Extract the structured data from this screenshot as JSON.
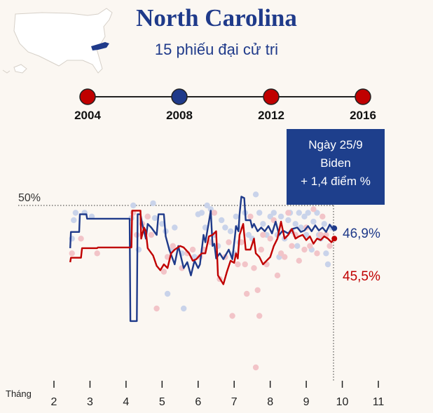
{
  "header": {
    "title": "North Carolina",
    "subtitle": "15 phiếu đại cử tri"
  },
  "timeline": {
    "years": [
      {
        "label": "2004",
        "winner": "rep"
      },
      {
        "label": "2008",
        "winner": "dem"
      },
      {
        "label": "2012",
        "winner": "rep"
      },
      {
        "label": "2016",
        "winner": "rep"
      }
    ]
  },
  "callout": {
    "date": "Ngày 25/9",
    "candidate": "Biden",
    "margin": "+ 1,4 điểm %"
  },
  "colors": {
    "dem": "#1f3a8a",
    "rep": "#c00000",
    "dem_dot": "#c9d3ea",
    "rep_dot": "#f2c4c8"
  },
  "chart_data": {
    "type": "line",
    "xlabel": "Tháng",
    "x_ticks": [
      "2",
      "3",
      "4",
      "5",
      "6",
      "7",
      "8",
      "9",
      "10",
      "11"
    ],
    "xlim": [
      2,
      11
    ],
    "ylim": [
      26,
      52
    ],
    "reference_line": {
      "value": 50,
      "label": "50%"
    },
    "end_labels": {
      "dem": "46,9%",
      "rep": "45,5%"
    },
    "series": [
      {
        "key": "dem",
        "points": [
          [
            2.45,
            44.2
          ],
          [
            2.47,
            46.4
          ],
          [
            2.7,
            46.4
          ],
          [
            2.72,
            48.8
          ],
          [
            2.9,
            48.8
          ],
          [
            2.92,
            48.2
          ],
          [
            4.1,
            48.2
          ],
          [
            4.12,
            34.3
          ],
          [
            4.3,
            34.3
          ],
          [
            4.32,
            48.8
          ],
          [
            4.4,
            48.8
          ],
          [
            4.45,
            47.5
          ],
          [
            4.55,
            45.5
          ],
          [
            4.6,
            47.5
          ],
          [
            4.7,
            47.0
          ],
          [
            4.85,
            46.0
          ],
          [
            4.9,
            48.8
          ],
          [
            5.05,
            48.8
          ],
          [
            5.1,
            45.8
          ],
          [
            5.2,
            44.0
          ],
          [
            5.35,
            42.0
          ],
          [
            5.45,
            44.5
          ],
          [
            5.6,
            41.5
          ],
          [
            5.7,
            42.3
          ],
          [
            5.8,
            40.5
          ],
          [
            5.9,
            42.5
          ],
          [
            6.0,
            41.5
          ],
          [
            6.05,
            42.0
          ],
          [
            6.15,
            46.0
          ],
          [
            6.2,
            45.0
          ],
          [
            6.3,
            47.8
          ],
          [
            6.35,
            49.3
          ],
          [
            6.4,
            44.5
          ],
          [
            6.45,
            44.8
          ],
          [
            6.5,
            42.8
          ],
          [
            6.6,
            43.5
          ],
          [
            6.7,
            42.7
          ],
          [
            6.85,
            44.0
          ],
          [
            6.95,
            42.7
          ],
          [
            7.02,
            45.8
          ],
          [
            7.05,
            47.2
          ],
          [
            7.12,
            46.5
          ],
          [
            7.15,
            48.8
          ],
          [
            7.2,
            51.2
          ],
          [
            7.28,
            51.0
          ],
          [
            7.32,
            48.0
          ],
          [
            7.45,
            48.0
          ],
          [
            7.5,
            47.0
          ],
          [
            7.55,
            47.5
          ],
          [
            7.65,
            46.5
          ],
          [
            7.75,
            47.0
          ],
          [
            7.85,
            46.5
          ],
          [
            7.95,
            47.2
          ],
          [
            8.05,
            46.2
          ],
          [
            8.15,
            47.8
          ],
          [
            8.25,
            46.0
          ],
          [
            8.35,
            46.6
          ],
          [
            8.5,
            46.2
          ],
          [
            8.6,
            46.8
          ],
          [
            8.75,
            47.0
          ],
          [
            8.85,
            46.4
          ],
          [
            8.95,
            46.6
          ],
          [
            9.05,
            47.2
          ],
          [
            9.15,
            46.5
          ],
          [
            9.25,
            47.3
          ],
          [
            9.35,
            46.6
          ],
          [
            9.45,
            47.0
          ],
          [
            9.55,
            46.4
          ],
          [
            9.65,
            47.4
          ],
          [
            9.72,
            46.9
          ],
          [
            9.78,
            46.9
          ]
        ]
      },
      {
        "key": "rep",
        "points": [
          [
            2.45,
            42.3
          ],
          [
            2.47,
            42.9
          ],
          [
            2.75,
            42.9
          ],
          [
            2.78,
            44.2
          ],
          [
            3.2,
            44.2
          ],
          [
            3.22,
            44.3
          ],
          [
            4.15,
            44.3
          ],
          [
            4.17,
            49.3
          ],
          [
            4.4,
            49.3
          ],
          [
            4.42,
            45.5
          ],
          [
            4.5,
            47.0
          ],
          [
            4.55,
            46.5
          ],
          [
            4.6,
            44.2
          ],
          [
            4.75,
            43.2
          ],
          [
            4.85,
            41.8
          ],
          [
            4.95,
            41.2
          ],
          [
            5.05,
            42.0
          ],
          [
            5.15,
            41.5
          ],
          [
            5.25,
            43.5
          ],
          [
            5.35,
            44.0
          ],
          [
            5.5,
            44.5
          ],
          [
            5.6,
            44.3
          ],
          [
            5.75,
            43.5
          ],
          [
            5.85,
            42.5
          ],
          [
            5.95,
            42.7
          ],
          [
            6.1,
            43.5
          ],
          [
            6.2,
            43.5
          ],
          [
            6.3,
            45.8
          ],
          [
            6.4,
            46.0
          ],
          [
            6.5,
            46.5
          ],
          [
            6.55,
            40.5
          ],
          [
            6.7,
            39.3
          ],
          [
            6.8,
            41.0
          ],
          [
            6.9,
            42.5
          ],
          [
            7.0,
            42.2
          ],
          [
            7.05,
            43.5
          ],
          [
            7.1,
            42.8
          ],
          [
            7.15,
            46.0
          ],
          [
            7.25,
            47.5
          ],
          [
            7.32,
            44.0
          ],
          [
            7.45,
            44.0
          ],
          [
            7.55,
            45.5
          ],
          [
            7.6,
            43.5
          ],
          [
            7.7,
            43.0
          ],
          [
            7.8,
            42.0
          ],
          [
            7.9,
            42.5
          ],
          [
            8.0,
            43.0
          ],
          [
            8.1,
            44.5
          ],
          [
            8.2,
            45.5
          ],
          [
            8.3,
            47.8
          ],
          [
            8.4,
            45.5
          ],
          [
            8.5,
            46.0
          ],
          [
            8.6,
            46.8
          ],
          [
            8.7,
            45.5
          ],
          [
            8.8,
            45.8
          ],
          [
            8.9,
            46.0
          ],
          [
            9.0,
            45.3
          ],
          [
            9.1,
            45.8
          ],
          [
            9.2,
            44.8
          ],
          [
            9.3,
            45.5
          ],
          [
            9.4,
            45.3
          ],
          [
            9.5,
            45.8
          ],
          [
            9.6,
            45.5
          ],
          [
            9.7,
            45.0
          ],
          [
            9.78,
            45.5
          ]
        ]
      }
    ],
    "poll_dots": {
      "dem": [
        [
          2.5,
          45.5
        ],
        [
          2.55,
          48.0
        ],
        [
          2.6,
          49.0
        ],
        [
          2.85,
          49.0
        ],
        [
          3.05,
          48.5
        ],
        [
          4.15,
          48.3
        ],
        [
          4.2,
          50.0
        ],
        [
          4.35,
          44.0
        ],
        [
          4.6,
          48.5
        ],
        [
          4.75,
          50.3
        ],
        [
          4.8,
          48.3
        ],
        [
          5.0,
          47.5
        ],
        [
          5.1,
          46.5
        ],
        [
          5.15,
          38.0
        ],
        [
          5.25,
          44.0
        ],
        [
          5.35,
          47.0
        ],
        [
          5.55,
          43.5
        ],
        [
          5.6,
          36.0
        ],
        [
          5.9,
          43.0
        ],
        [
          6.0,
          48.8
        ],
        [
          6.1,
          49.0
        ],
        [
          6.2,
          47.0
        ],
        [
          6.25,
          50.0
        ],
        [
          6.35,
          49.5
        ],
        [
          6.45,
          46.0
        ],
        [
          6.55,
          44.5
        ],
        [
          6.65,
          48.0
        ],
        [
          6.75,
          47.0
        ],
        [
          6.9,
          46.5
        ],
        [
          7.0,
          43.5
        ],
        [
          7.05,
          48.5
        ],
        [
          7.1,
          47.0
        ],
        [
          7.15,
          45.0
        ],
        [
          7.3,
          49.0
        ],
        [
          7.4,
          46.0
        ],
        [
          7.5,
          45.5
        ],
        [
          7.6,
          51.5
        ],
        [
          7.7,
          49.0
        ],
        [
          7.8,
          47.5
        ],
        [
          7.9,
          46.0
        ],
        [
          8.0,
          48.5
        ],
        [
          8.1,
          49.0
        ],
        [
          8.2,
          46.0
        ],
        [
          8.25,
          43.0
        ],
        [
          8.3,
          48.5
        ],
        [
          8.4,
          45.5
        ],
        [
          8.5,
          48.0
        ],
        [
          8.55,
          49.0
        ],
        [
          8.6,
          46.5
        ],
        [
          8.7,
          47.5
        ],
        [
          8.75,
          44.5
        ],
        [
          8.8,
          49.0
        ],
        [
          8.85,
          47.0
        ],
        [
          8.95,
          48.5
        ],
        [
          9.0,
          46.0
        ],
        [
          9.05,
          49.0
        ],
        [
          9.15,
          44.0
        ],
        [
          9.2,
          47.8
        ],
        [
          9.3,
          49.0
        ],
        [
          9.35,
          46.0
        ],
        [
          9.4,
          45.5
        ],
        [
          9.5,
          47.5
        ],
        [
          9.55,
          43.5
        ],
        [
          9.6,
          42.0
        ],
        [
          9.7,
          47.0
        ]
      ],
      "rep": [
        [
          2.5,
          43.5
        ],
        [
          2.75,
          45.5
        ],
        [
          3.2,
          43.5
        ],
        [
          4.2,
          49.0
        ],
        [
          4.3,
          46.0
        ],
        [
          4.45,
          47.5
        ],
        [
          4.6,
          48.5
        ],
        [
          4.7,
          46.0
        ],
        [
          4.85,
          36.0
        ],
        [
          5.05,
          41.0
        ],
        [
          5.15,
          43.0
        ],
        [
          5.3,
          44.5
        ],
        [
          5.55,
          41.5
        ],
        [
          5.7,
          43.5
        ],
        [
          5.85,
          44.0
        ],
        [
          6.05,
          43.0
        ],
        [
          6.15,
          44.0
        ],
        [
          6.35,
          45.0
        ],
        [
          6.45,
          49.0
        ],
        [
          6.6,
          40.0
        ],
        [
          6.75,
          43.0
        ],
        [
          6.85,
          45.0
        ],
        [
          6.95,
          35.0
        ],
        [
          7.1,
          42.0
        ],
        [
          7.2,
          45.0
        ],
        [
          7.3,
          42.0
        ],
        [
          7.35,
          38.0
        ],
        [
          7.45,
          48.5
        ],
        [
          7.55,
          41.5
        ],
        [
          7.65,
          38.5
        ],
        [
          7.7,
          35.0
        ],
        [
          7.75,
          44.0
        ],
        [
          7.8,
          46.0
        ],
        [
          7.9,
          42.0
        ],
        [
          8.0,
          45.5
        ],
        [
          8.1,
          48.0
        ],
        [
          8.2,
          40.5
        ],
        [
          8.3,
          43.5
        ],
        [
          8.4,
          43.0
        ],
        [
          8.5,
          49.0
        ],
        [
          8.6,
          44.5
        ],
        [
          8.7,
          46.0
        ],
        [
          8.8,
          42.5
        ],
        [
          8.95,
          44.0
        ],
        [
          9.0,
          47.0
        ],
        [
          9.1,
          44.5
        ],
        [
          9.2,
          49.5
        ],
        [
          9.3,
          43.5
        ],
        [
          9.4,
          46.0
        ],
        [
          9.45,
          48.5
        ],
        [
          9.55,
          46.0
        ],
        [
          9.65,
          44.5
        ],
        [
          7.6,
          28.0
        ]
      ]
    }
  }
}
